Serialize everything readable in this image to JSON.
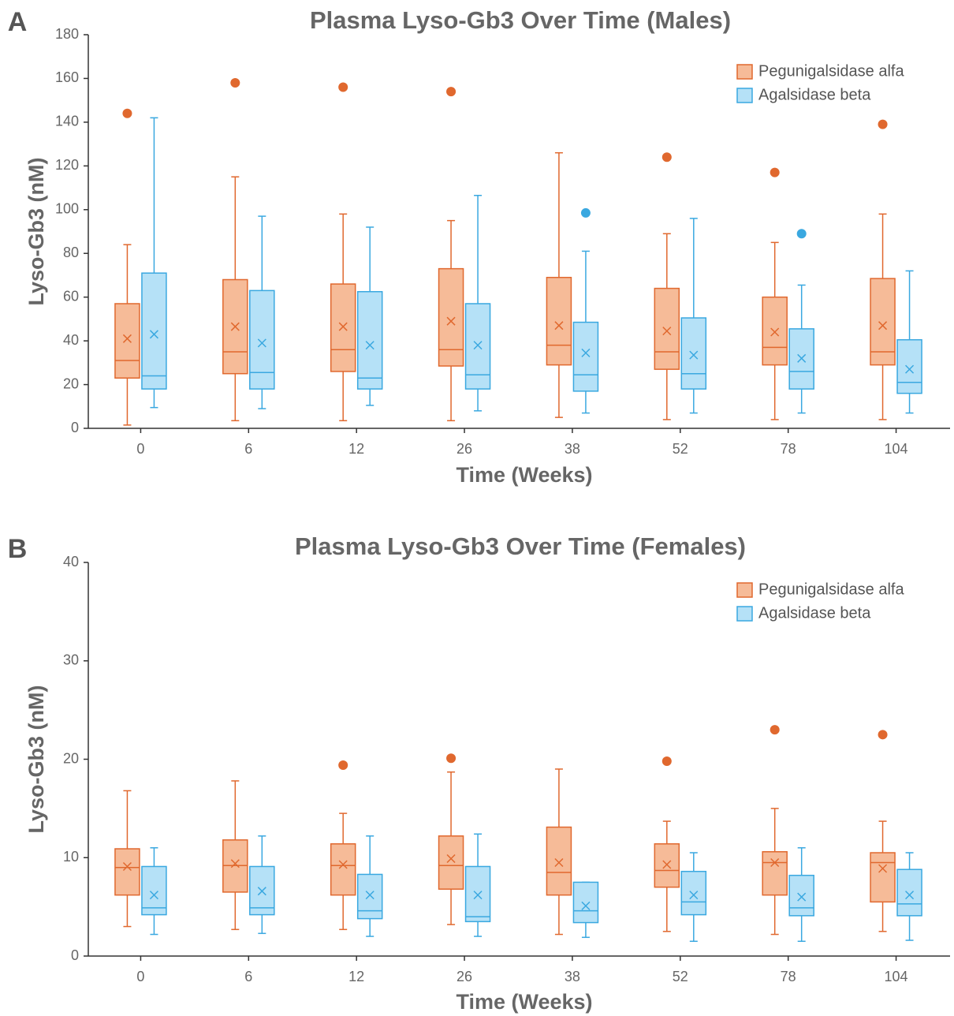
{
  "chart_data": [
    {
      "type": "box",
      "panel_label": "A",
      "title": "Plasma Lyso-Gb3 Over Time (Males)",
      "x_label": "Time (Weeks)",
      "y_label": "Lyso-Gb3 (nM)",
      "categories": [
        "0",
        "6",
        "12",
        "26",
        "38",
        "52",
        "78",
        "104"
      ],
      "ylim": [
        0,
        180
      ],
      "yticks": [
        0,
        20,
        40,
        60,
        80,
        100,
        120,
        140,
        160,
        180
      ],
      "legend": "top-right",
      "series": [
        {
          "name": "Pegunigalsidase alfa",
          "color": "#e0682e",
          "fill": "#f6bb98",
          "min": [
            1.5,
            3.5,
            3.5,
            3.5,
            5,
            4,
            4,
            4
          ],
          "q1": [
            23,
            25,
            26,
            28.5,
            29,
            27,
            29,
            29
          ],
          "median": [
            31,
            35,
            36,
            36,
            38,
            35,
            37,
            35
          ],
          "q3": [
            57,
            68,
            66,
            73,
            69,
            64,
            60,
            68.5
          ],
          "max": [
            84,
            115,
            98,
            95,
            126,
            89,
            85,
            98
          ],
          "mean": [
            41,
            46.5,
            46.5,
            49,
            47,
            44.5,
            44,
            47
          ],
          "outliers": [
            [
              144
            ],
            [
              158
            ],
            [
              156
            ],
            [
              154
            ],
            [],
            [
              124
            ],
            [
              117
            ],
            [
              139
            ]
          ]
        },
        {
          "name": "Agalsidase beta",
          "color": "#3aa8e0",
          "fill": "#b5e1f7",
          "min": [
            9.5,
            9,
            10.5,
            8,
            7,
            7,
            7,
            7
          ],
          "q1": [
            18,
            18,
            18,
            18,
            17,
            18,
            18,
            16
          ],
          "median": [
            24,
            25.5,
            23,
            24.5,
            24.5,
            25,
            26,
            21
          ],
          "q3": [
            71,
            63,
            62.5,
            57,
            48.5,
            50.5,
            45.5,
            40.5
          ],
          "max": [
            142,
            97,
            92,
            106.5,
            81,
            96,
            65.5,
            72
          ],
          "mean": [
            43,
            39,
            38,
            38,
            34.5,
            33.5,
            32,
            27
          ],
          "outliers": [
            [],
            [],
            [],
            [],
            [
              98.5
            ],
            [],
            [
              89
            ],
            []
          ]
        }
      ]
    },
    {
      "type": "box",
      "panel_label": "B",
      "title": "Plasma Lyso-Gb3 Over Time (Females)",
      "x_label": "Time (Weeks)",
      "y_label": "Lyso-Gb3 (nM)",
      "categories": [
        "0",
        "6",
        "12",
        "26",
        "38",
        "52",
        "78",
        "104"
      ],
      "ylim": [
        0,
        40
      ],
      "yticks": [
        0,
        10,
        20,
        30,
        40
      ],
      "legend": "top-right",
      "series": [
        {
          "name": "Pegunigalsidase alfa",
          "color": "#e0682e",
          "fill": "#f6bb98",
          "min": [
            3,
            2.7,
            2.7,
            3.2,
            2.2,
            2.5,
            2.2,
            2.5
          ],
          "q1": [
            6.2,
            6.5,
            6.2,
            6.8,
            6.2,
            7,
            6.2,
            5.5
          ],
          "median": [
            9,
            9.2,
            9.2,
            9.2,
            8.5,
            8.7,
            9.5,
            9.5
          ],
          "q3": [
            10.9,
            11.8,
            11.4,
            12.2,
            13.1,
            11.4,
            10.6,
            10.5
          ],
          "max": [
            16.8,
            17.8,
            14.5,
            18.7,
            19,
            13.7,
            15,
            13.7
          ],
          "mean": [
            9.1,
            9.4,
            9.3,
            9.9,
            9.5,
            9.3,
            9.5,
            8.9
          ],
          "outliers": [
            [],
            [],
            [
              19.4
            ],
            [
              20.1
            ],
            [],
            [
              19.8
            ],
            [
              23
            ],
            [
              22.5
            ]
          ]
        },
        {
          "name": "Agalsidase beta",
          "color": "#3aa8e0",
          "fill": "#b5e1f7",
          "min": [
            2.2,
            2.3,
            2,
            2,
            1.9,
            1.5,
            1.5,
            1.6
          ],
          "q1": [
            4.2,
            4.2,
            3.8,
            3.5,
            3.4,
            4.2,
            4.1,
            4.1
          ],
          "median": [
            4.9,
            4.9,
            4.6,
            4,
            4.6,
            5.5,
            4.9,
            5.3
          ],
          "q3": [
            9.1,
            9.1,
            8.3,
            9.1,
            7.5,
            8.6,
            8.2,
            8.8
          ],
          "max": [
            11,
            12.2,
            12.2,
            12.4,
            7.5,
            10.5,
            11,
            10.5
          ],
          "mean": [
            6.2,
            6.6,
            6.2,
            6.2,
            5.1,
            6.2,
            6,
            6.2
          ],
          "outliers": [
            [],
            [],
            [],
            [],
            [],
            [],
            [],
            []
          ]
        }
      ]
    }
  ]
}
